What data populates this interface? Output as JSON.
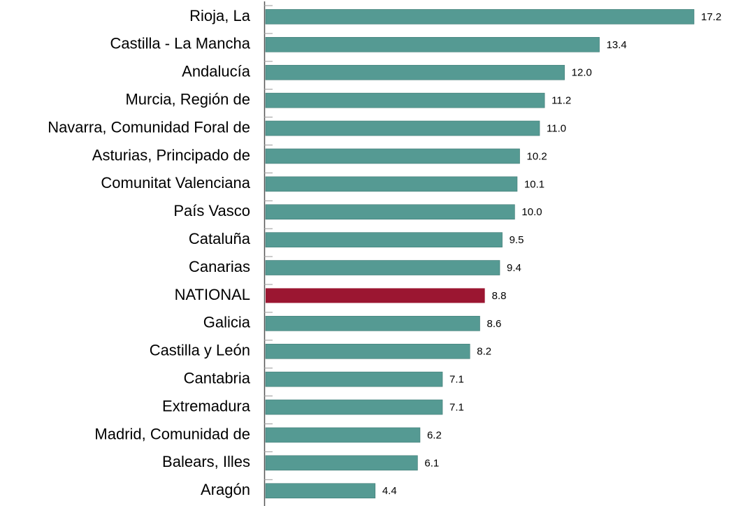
{
  "chart_data": {
    "type": "hbar",
    "categories": [
      "Rioja, La",
      "Castilla - La Mancha",
      "Andalucía",
      "Murcia, Región de",
      "Navarra, Comunidad Foral de",
      "Asturias, Principado de",
      "Comunitat Valenciana",
      "País Vasco",
      "Cataluña",
      "Canarias",
      "NATIONAL",
      "Galicia",
      "Castilla y León",
      "Cantabria",
      "Extremadura",
      "Madrid, Comunidad de",
      "Balears, Illes",
      "Aragón"
    ],
    "values": [
      17.2,
      13.4,
      12.0,
      11.2,
      11.0,
      10.2,
      10.1,
      10.0,
      9.5,
      9.4,
      8.8,
      8.6,
      8.2,
      7.1,
      7.1,
      6.2,
      6.1,
      4.4
    ],
    "value_labels": [
      "17.2",
      "13.4",
      "12.0",
      "11.2",
      "11.0",
      "10.2",
      "10.1",
      "10.0",
      "9.5",
      "9.4",
      "8.8",
      "8.6",
      "8.2",
      "7.1",
      "7.1",
      "6.2",
      "6.1",
      "4.4"
    ],
    "colors": [
      "#559a93",
      "#559a93",
      "#559a93",
      "#559a93",
      "#559a93",
      "#559a93",
      "#559a93",
      "#559a93",
      "#559a93",
      "#559a93",
      "#9b1631",
      "#559a93",
      "#559a93",
      "#559a93",
      "#559a93",
      "#559a93",
      "#559a93",
      "#559a93"
    ]
  }
}
